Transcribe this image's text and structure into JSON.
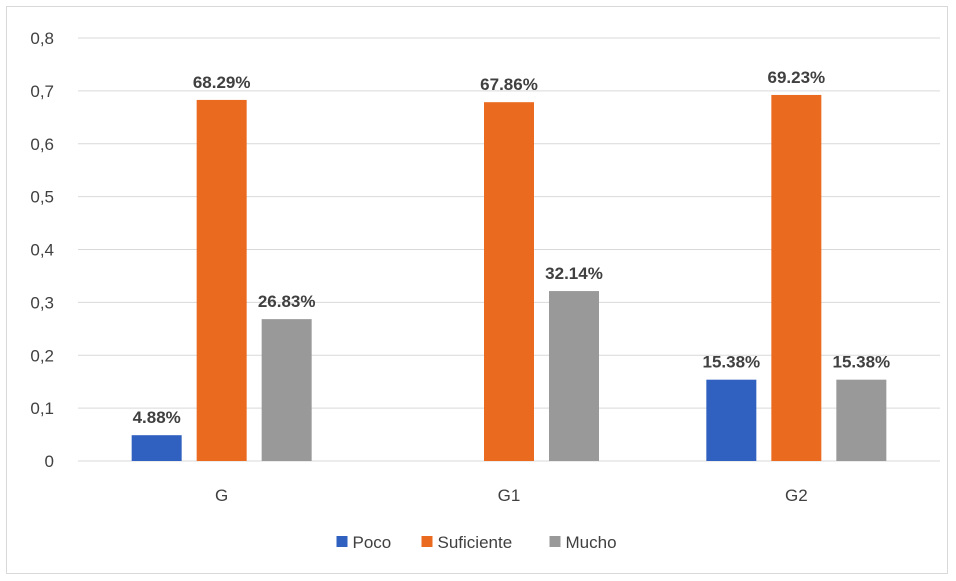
{
  "chart_data": {
    "type": "bar",
    "categories": [
      "G",
      "G1",
      "G2"
    ],
    "series": [
      {
        "name": "Poco",
        "values": [
          0.0488,
          null,
          0.1538
        ],
        "labels": [
          "4.88%",
          "",
          "15.38%"
        ],
        "color": "#3060c0"
      },
      {
        "name": "Suficiente",
        "values": [
          0.6829,
          0.6786,
          0.6923
        ],
        "labels": [
          "68.29%",
          "67.86%",
          "69.23%"
        ],
        "color": "#ea6a20"
      },
      {
        "name": "Mucho",
        "values": [
          0.2683,
          0.3214,
          0.1538
        ],
        "labels": [
          "26.83%",
          "32.14%",
          "15.38%"
        ],
        "color": "#999999"
      }
    ],
    "ylim": [
      0,
      0.8
    ],
    "yticks": [
      0,
      0.1,
      0.2,
      0.3,
      0.4,
      0.5,
      0.6,
      0.7,
      0.8
    ],
    "ytick_labels": [
      "0",
      "0,1",
      "0,2",
      "0,3",
      "0,4",
      "0,5",
      "0,6",
      "0,7",
      "0,8"
    ],
    "grid": true,
    "legend_position": "bottom",
    "gridline_color": "#d9d9d9"
  }
}
